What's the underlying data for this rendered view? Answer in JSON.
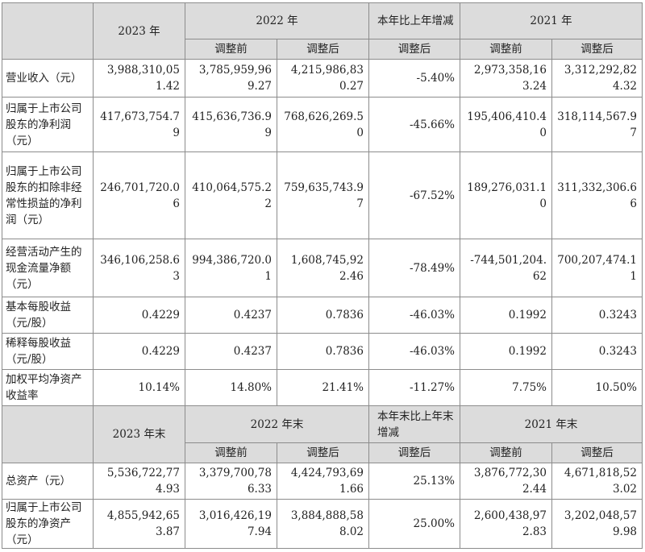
{
  "header1": {
    "year2023": "2023 年",
    "year2022": "2022 年",
    "yoy": "本年比上年增减",
    "year2021": "2021 年",
    "before": "调整前",
    "after": "调整后"
  },
  "rows1": [
    {
      "label": "营业收入（元）",
      "c2023": "3,988,310,051.42",
      "c2022b": "3,785,959,969.27",
      "c2022a": "4,215,986,830.27",
      "yoy": "-5.40%",
      "c2021b": "2,973,358,163.24",
      "c2021a": "3,312,292,824.32"
    },
    {
      "label": "归属于上市公司股东的净利润（元）",
      "c2023": "417,673,754.79",
      "c2022b": "415,636,736.99",
      "c2022a": "768,626,269.50",
      "yoy": "-45.66%",
      "c2021b": "195,406,410.40",
      "c2021a": "318,114,567.97"
    },
    {
      "label": "归属于上市公司股东的扣除非经常性损益的净利润（元）",
      "c2023": "246,701,720.06",
      "c2022b": "410,064,575.22",
      "c2022a": "759,635,743.97",
      "yoy": "-67.52%",
      "c2021b": "189,276,031.10",
      "c2021a": "311,332,306.66"
    },
    {
      "label": "经营活动产生的现金流量净额（元）",
      "c2023": "346,106,258.63",
      "c2022b": "994,386,720.01",
      "c2022a": "1,608,745,922.46",
      "yoy": "-78.49%",
      "c2021b": "-744,501,204.62",
      "c2021a": "700,207,474.11"
    },
    {
      "label": "基本每股收益（元/股）",
      "c2023": "0.4229",
      "c2022b": "0.4237",
      "c2022a": "0.7836",
      "yoy": "-46.03%",
      "c2021b": "0.1992",
      "c2021a": "0.3243"
    },
    {
      "label": "稀释每股收益（元/股）",
      "c2023": "0.4229",
      "c2022b": "0.4237",
      "c2022a": "0.7836",
      "yoy": "-46.03%",
      "c2021b": "0.1992",
      "c2021a": "0.3243"
    },
    {
      "label": "加权平均净资产收益率",
      "c2023": "10.14%",
      "c2022b": "14.80%",
      "c2022a": "21.41%",
      "yoy": "-11.27%",
      "c2021b": "7.75%",
      "c2021a": "10.50%"
    }
  ],
  "header2": {
    "year2023": "2023 年末",
    "year2022": "2022 年末",
    "yoy": "本年末比上年末增减",
    "year2021": "2021 年末",
    "before": "调整前",
    "after": "调整后"
  },
  "rows2": [
    {
      "label": "总资产（元）",
      "c2023": "5,536,722,774.93",
      "c2022b": "3,379,700,786.33",
      "c2022a": "4,424,793,691.66",
      "yoy": "25.13%",
      "c2021b": "3,876,772,302.44",
      "c2021a": "4,671,818,523.02"
    },
    {
      "label": "归属于上市公司股东的净资产（元）",
      "c2023": "4,855,942,653.87",
      "c2022b": "3,016,426,197.94",
      "c2022a": "3,884,888,588.02",
      "yoy": "25.00%",
      "c2021b": "2,600,438,972.83",
      "c2021a": "3,202,048,579.98"
    }
  ]
}
